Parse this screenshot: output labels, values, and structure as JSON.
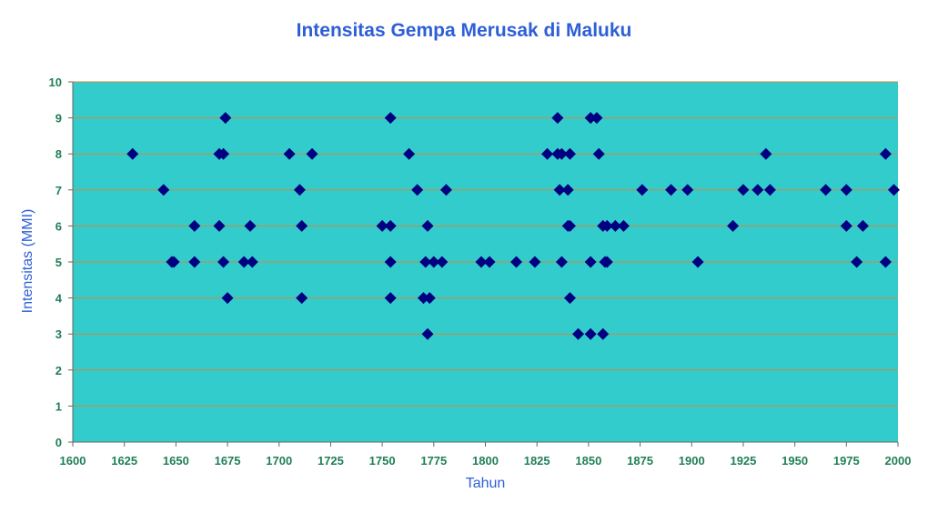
{
  "colors": {
    "plot_background": "#33cccc",
    "grid": "#d08a3a",
    "marker": "#000080",
    "title": "#2e5fd6",
    "ticks": "#1f7f56"
  },
  "chart_data": {
    "type": "scatter",
    "title": "Intensitas Gempa Merusak di Maluku",
    "xlabel": "Tahun",
    "ylabel": "Intensitas (MMI)",
    "xlim": [
      1600,
      2000
    ],
    "ylim": [
      0,
      10
    ],
    "xticks": [
      1600,
      1625,
      1650,
      1675,
      1700,
      1725,
      1750,
      1775,
      1800,
      1825,
      1850,
      1875,
      1900,
      1925,
      1950,
      1975,
      2000
    ],
    "yticks": [
      0,
      1,
      2,
      3,
      4,
      5,
      6,
      7,
      8,
      9,
      10
    ],
    "grid": "horizontal",
    "marker": "diamond",
    "points": [
      [
        1629,
        8
      ],
      [
        1644,
        7
      ],
      [
        1648,
        5
      ],
      [
        1649,
        5
      ],
      [
        1659,
        6
      ],
      [
        1659,
        5
      ],
      [
        1671,
        8
      ],
      [
        1671,
        6
      ],
      [
        1673,
        8
      ],
      [
        1673,
        5
      ],
      [
        1674,
        9
      ],
      [
        1675,
        4
      ],
      [
        1683,
        5
      ],
      [
        1686,
        6
      ],
      [
        1687,
        5
      ],
      [
        1705,
        8
      ],
      [
        1710,
        7
      ],
      [
        1711,
        6
      ],
      [
        1711,
        4
      ],
      [
        1716,
        8
      ],
      [
        1750,
        6
      ],
      [
        1754,
        6
      ],
      [
        1754,
        9
      ],
      [
        1754,
        5
      ],
      [
        1754,
        4
      ],
      [
        1763,
        8
      ],
      [
        1767,
        7
      ],
      [
        1770,
        4
      ],
      [
        1771,
        5
      ],
      [
        1772,
        6
      ],
      [
        1772,
        3
      ],
      [
        1773,
        4
      ],
      [
        1775,
        5
      ],
      [
        1779,
        5
      ],
      [
        1781,
        7
      ],
      [
        1798,
        5
      ],
      [
        1802,
        5
      ],
      [
        1815,
        5
      ],
      [
        1824,
        5
      ],
      [
        1830,
        8
      ],
      [
        1835,
        9
      ],
      [
        1835,
        8
      ],
      [
        1836,
        7
      ],
      [
        1837,
        5
      ],
      [
        1837,
        8
      ],
      [
        1840,
        7
      ],
      [
        1840,
        6
      ],
      [
        1841,
        8
      ],
      [
        1841,
        6
      ],
      [
        1841,
        4
      ],
      [
        1845,
        3
      ],
      [
        1851,
        9
      ],
      [
        1851,
        5
      ],
      [
        1851,
        3
      ],
      [
        1854,
        9
      ],
      [
        1855,
        8
      ],
      [
        1857,
        6
      ],
      [
        1857,
        3
      ],
      [
        1858,
        5
      ],
      [
        1859,
        5
      ],
      [
        1859,
        6
      ],
      [
        1863,
        6
      ],
      [
        1867,
        6
      ],
      [
        1876,
        7
      ],
      [
        1890,
        7
      ],
      [
        1898,
        7
      ],
      [
        1903,
        5
      ],
      [
        1920,
        6
      ],
      [
        1925,
        7
      ],
      [
        1932,
        7
      ],
      [
        1936,
        8
      ],
      [
        1938,
        7
      ],
      [
        1965,
        7
      ],
      [
        1975,
        7
      ],
      [
        1975,
        6
      ],
      [
        1980,
        5
      ],
      [
        1983,
        6
      ],
      [
        1994,
        8
      ],
      [
        1994,
        5
      ],
      [
        1998,
        7
      ]
    ]
  }
}
